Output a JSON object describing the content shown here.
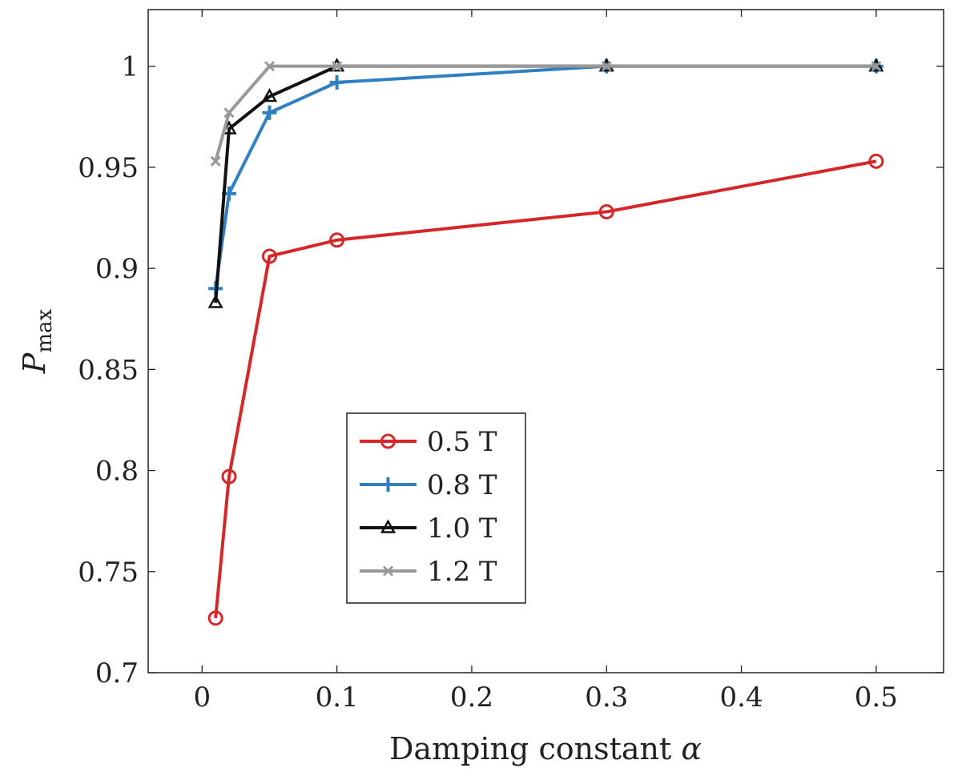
{
  "chart_data": {
    "type": "line",
    "title": "",
    "xlabel": "Damping constant",
    "xlabel_symbol": "α",
    "ylabel": "P",
    "ylabel_sub": "max",
    "xlim": [
      -0.04,
      0.55
    ],
    "ylim": [
      0.7,
      1.028
    ],
    "xticks": [
      0,
      0.1,
      0.2,
      0.3,
      0.4,
      0.5
    ],
    "xtick_labels": [
      "0",
      "0.1",
      "0.2",
      "0.3",
      "0.4",
      "0.5"
    ],
    "yticks": [
      0.7,
      0.75,
      0.8,
      0.85,
      0.9,
      0.95,
      1.0
    ],
    "ytick_labels": [
      "0.7",
      "0.75",
      "0.8",
      "0.85",
      "0.9",
      "0.95",
      "1"
    ],
    "grid": false,
    "legend_position": "center-left",
    "series": [
      {
        "name": "0.5 T",
        "color": "#d62728",
        "marker": "circle",
        "x": [
          0.01,
          0.02,
          0.05,
          0.1,
          0.3,
          0.5
        ],
        "y": [
          0.727,
          0.797,
          0.906,
          0.914,
          0.928,
          0.953
        ]
      },
      {
        "name": "0.8 T",
        "color": "#2f7fc1",
        "marker": "plus",
        "x": [
          0.01,
          0.02,
          0.05,
          0.1,
          0.3,
          0.5
        ],
        "y": [
          0.89,
          0.937,
          0.977,
          0.992,
          1.0,
          1.0
        ]
      },
      {
        "name": "1.0 T",
        "color": "#111111",
        "marker": "triangle",
        "x": [
          0.01,
          0.02,
          0.05,
          0.1,
          0.3,
          0.5
        ],
        "y": [
          0.883,
          0.969,
          0.985,
          1.0,
          1.0,
          1.0
        ]
      },
      {
        "name": "1.2 T",
        "color": "#999999",
        "marker": "x",
        "x": [
          0.01,
          0.02,
          0.05,
          0.1,
          0.3,
          0.5
        ],
        "y": [
          0.953,
          0.977,
          1.0,
          1.0,
          1.0,
          1.0
        ]
      }
    ]
  }
}
